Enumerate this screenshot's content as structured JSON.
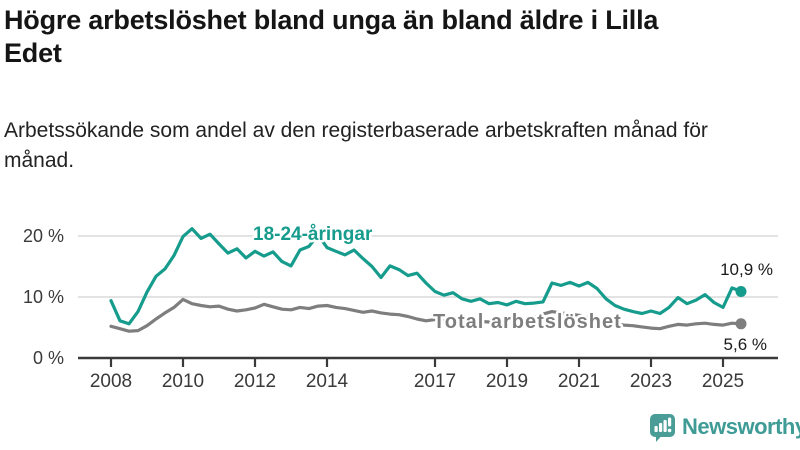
{
  "header": {
    "title": "Högre arbetslöshet bland unga än bland äldre i Lilla Edet",
    "subtitle": "Arbetssökande som andel av den registerbaserade arbetskraften månad för månad."
  },
  "chart_data": {
    "type": "line",
    "grid": "horizontal",
    "ylim": [
      0,
      22.5
    ],
    "xlim": [
      2007.1,
      2026.1
    ],
    "y_ticks": [
      {
        "value": 0,
        "label": "0 %"
      },
      {
        "value": 10,
        "label": "10 %"
      },
      {
        "value": 20,
        "label": "20 %"
      }
    ],
    "x_ticks": [
      2008,
      2010,
      2012,
      2014,
      2017,
      2019,
      2021,
      2023,
      2025
    ],
    "x": [
      2008.0,
      2008.25,
      2008.5,
      2008.75,
      2009.0,
      2009.25,
      2009.5,
      2009.75,
      2010.0,
      2010.25,
      2010.5,
      2010.75,
      2011.0,
      2011.25,
      2011.5,
      2011.75,
      2012.0,
      2012.25,
      2012.5,
      2012.75,
      2013.0,
      2013.25,
      2013.5,
      2013.75,
      2014.0,
      2014.25,
      2014.5,
      2014.75,
      2015.0,
      2015.25,
      2015.5,
      2015.75,
      2016.0,
      2016.25,
      2016.5,
      2016.75,
      2017.0,
      2017.25,
      2017.5,
      2017.75,
      2018.0,
      2018.25,
      2018.5,
      2018.75,
      2019.0,
      2019.25,
      2019.5,
      2019.75,
      2020.0,
      2020.25,
      2020.5,
      2020.75,
      2021.0,
      2021.25,
      2021.5,
      2021.75,
      2022.0,
      2022.25,
      2022.5,
      2022.75,
      2023.0,
      2023.25,
      2023.5,
      2023.75,
      2024.0,
      2024.25,
      2024.5,
      2024.75,
      2025.0,
      2025.25,
      2025.5
    ],
    "series": [
      {
        "name": "18-24-åringar",
        "color": "#169c8c",
        "end_label": "10,9 %",
        "end_value": 10.9,
        "values": [
          9.4,
          6.1,
          5.6,
          7.6,
          10.8,
          13.4,
          14.6,
          16.8,
          19.9,
          21.2,
          19.6,
          20.3,
          18.7,
          17.2,
          17.9,
          16.4,
          17.5,
          16.7,
          17.4,
          15.8,
          15.1,
          17.7,
          18.3,
          20.2,
          18.1,
          17.5,
          16.9,
          17.7,
          16.3,
          15.0,
          13.2,
          15.1,
          14.5,
          13.5,
          13.9,
          12.3,
          10.9,
          10.3,
          10.7,
          9.7,
          9.3,
          9.7,
          8.9,
          9.1,
          8.7,
          9.3,
          8.9,
          9.0,
          9.2,
          12.3,
          11.9,
          12.4,
          11.8,
          12.4,
          11.4,
          9.7,
          8.6,
          8.0,
          7.6,
          7.3,
          7.7,
          7.3,
          8.3,
          9.9,
          8.9,
          9.5,
          10.4,
          9.1,
          8.3,
          11.5,
          10.9
        ]
      },
      {
        "name": "Total arbetslöshet",
        "color": "#7e7e7e",
        "end_label": "5,6 %",
        "end_value": 5.6,
        "values": [
          5.2,
          4.8,
          4.4,
          4.5,
          5.3,
          6.4,
          7.4,
          8.3,
          9.6,
          8.9,
          8.6,
          8.4,
          8.5,
          8.0,
          7.7,
          7.9,
          8.2,
          8.8,
          8.4,
          8.0,
          7.9,
          8.3,
          8.1,
          8.5,
          8.6,
          8.3,
          8.1,
          7.8,
          7.5,
          7.7,
          7.4,
          7.2,
          7.1,
          6.8,
          6.4,
          6.1,
          6.3,
          6.1,
          5.9,
          5.8,
          5.9,
          6.0,
          5.9,
          6.0,
          6.1,
          6.3,
          6.4,
          6.6,
          7.2,
          7.6,
          7.4,
          7.2,
          7.0,
          6.6,
          6.2,
          5.8,
          5.6,
          5.4,
          5.3,
          5.1,
          4.9,
          4.8,
          5.2,
          5.5,
          5.4,
          5.6,
          5.7,
          5.5,
          5.4,
          5.7,
          5.6
        ]
      }
    ],
    "colors": {
      "grid": "#dadada",
      "axis": "#3a3a3a",
      "value_label": "#1a1a1a"
    }
  },
  "branding": {
    "logo_text": "Newsworthy",
    "logo_icon": "bar-chart-speech-bubble",
    "logo_color": "#3e9b95",
    "logo_icon_color": "#4a9d97"
  }
}
